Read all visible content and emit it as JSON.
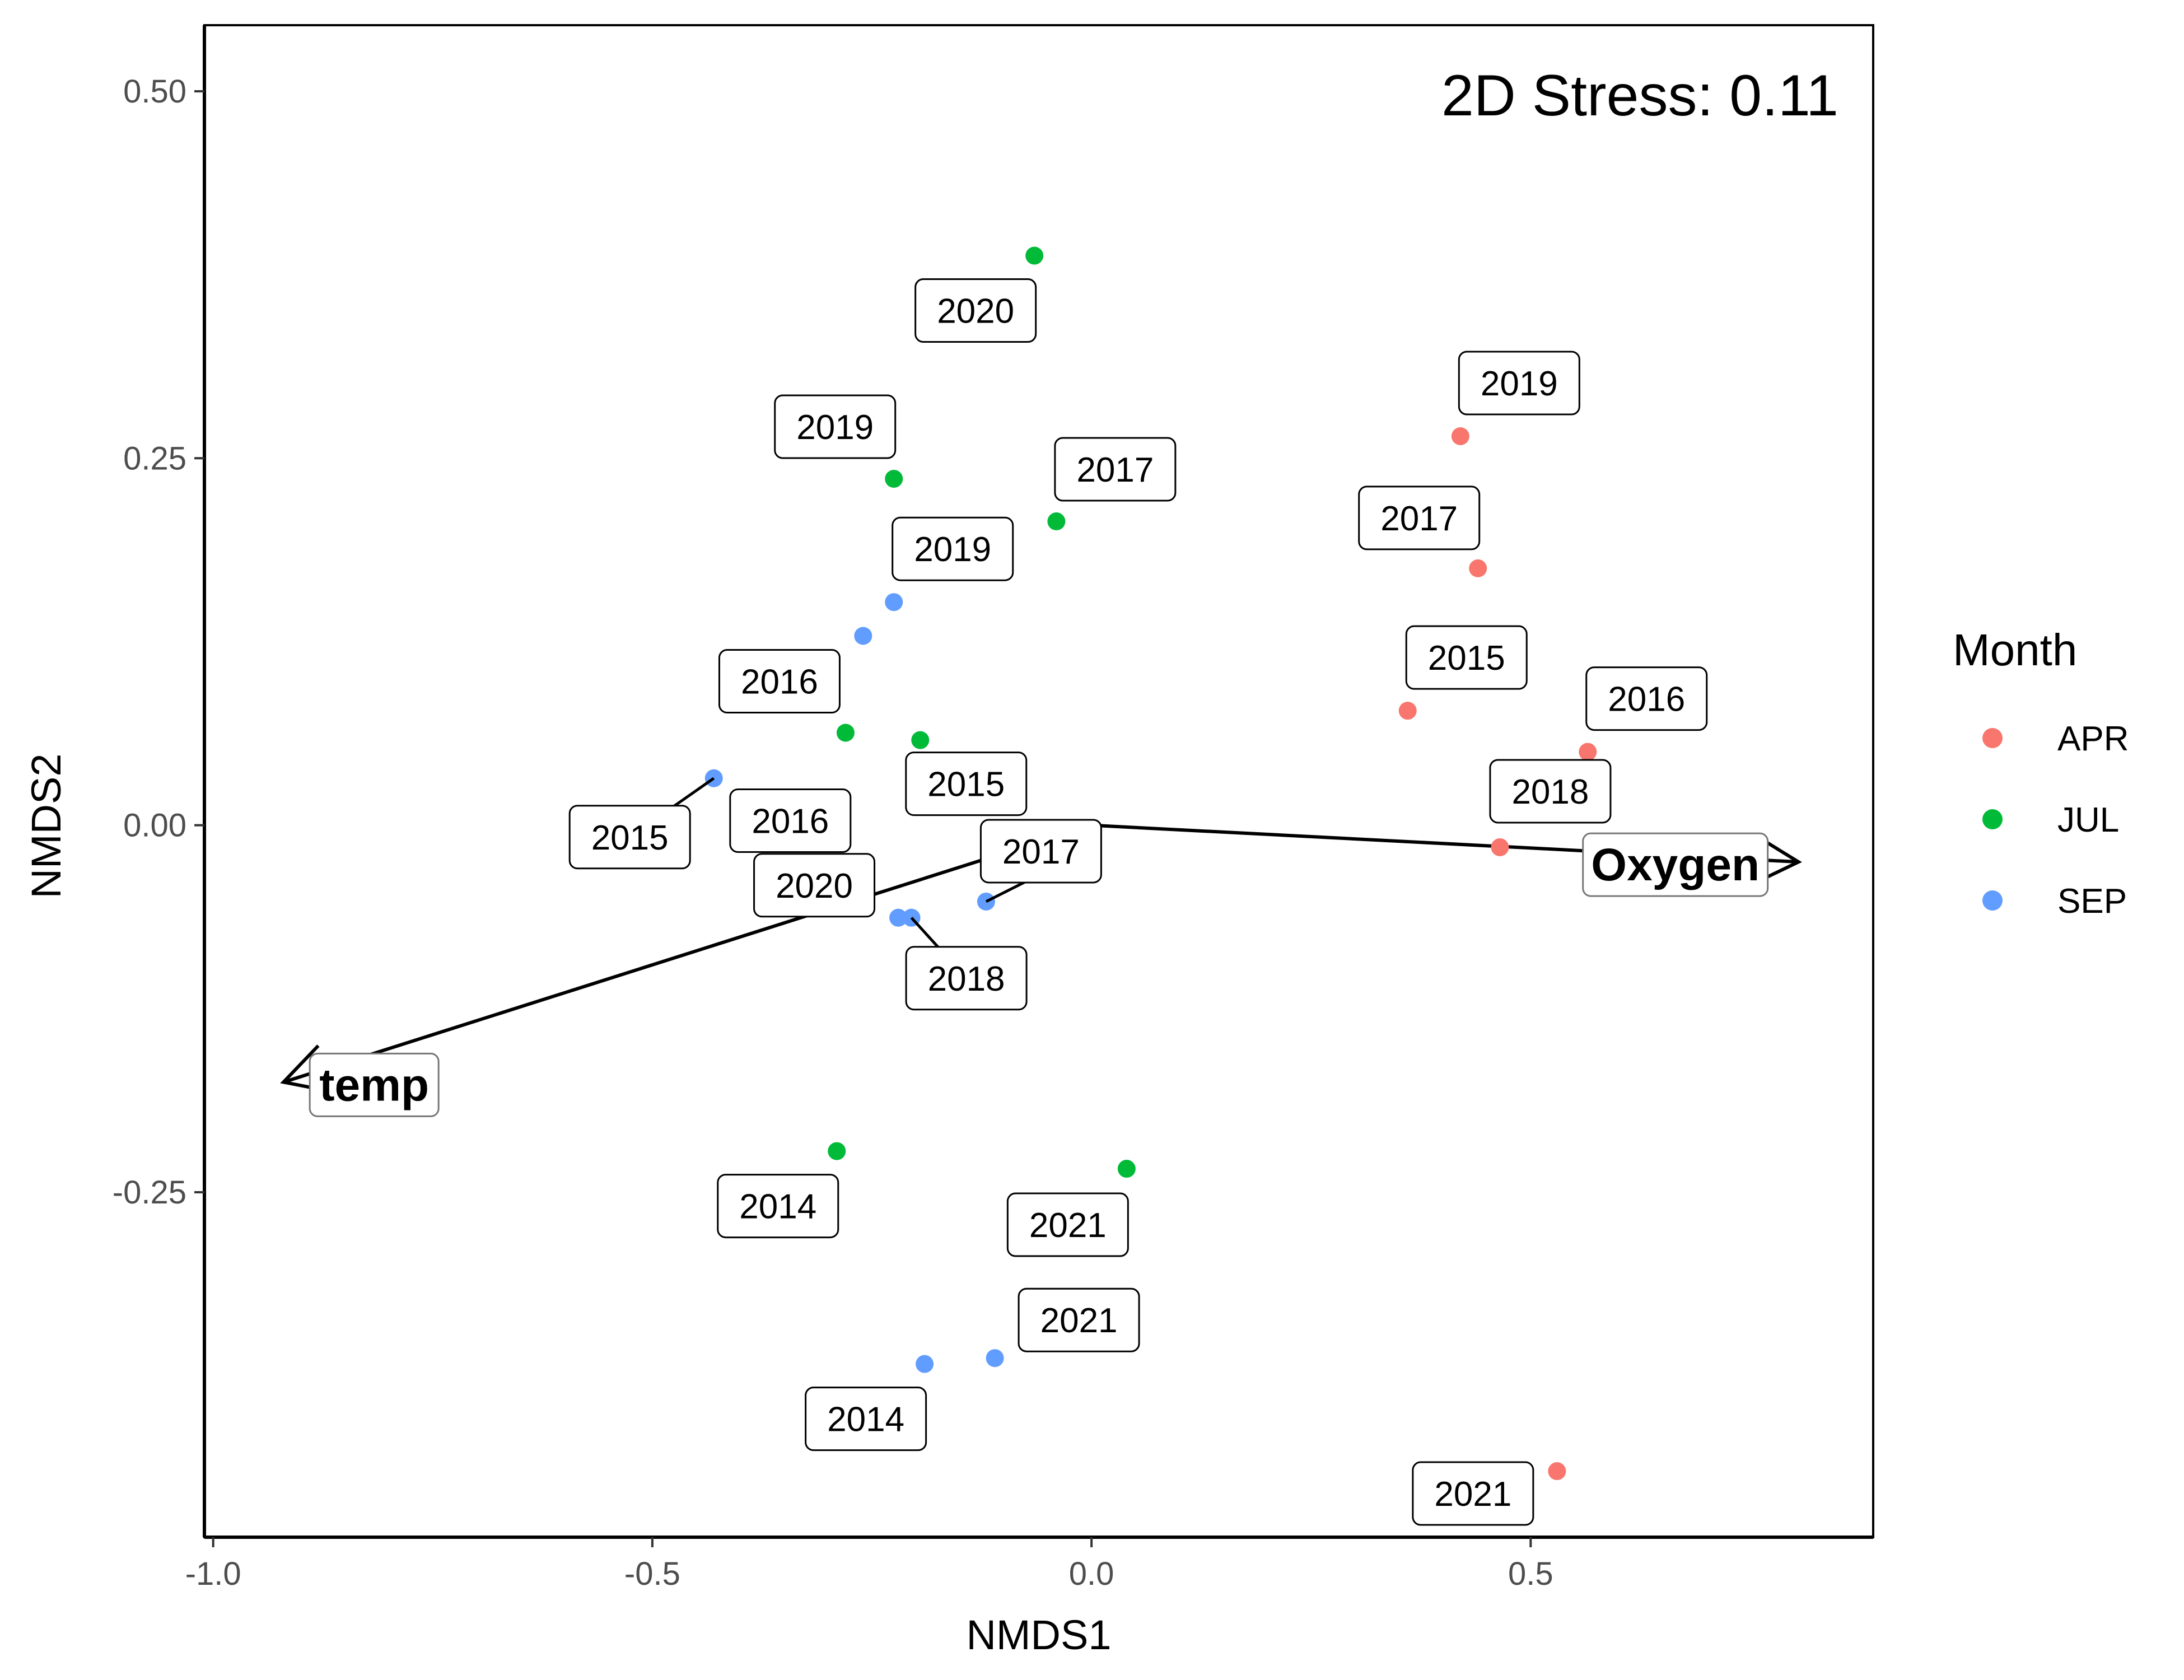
{
  "chart_data": {
    "type": "scatter",
    "xlabel": "NMDS1",
    "ylabel": "NMDS2",
    "xlim": [
      -1.01,
      0.89
    ],
    "ylim": [
      -0.485,
      0.545
    ],
    "x_ticks": [
      -1.0,
      -0.5,
      0.0,
      0.5
    ],
    "x_tick_labels": [
      "-1.0",
      "-0.5",
      "0.0",
      "0.5"
    ],
    "y_ticks": [
      0.5,
      0.25,
      0.0,
      -0.25
    ],
    "y_tick_labels": [
      "0.50",
      "0.25",
      "0.00",
      "-0.25"
    ],
    "grid": false,
    "annotation": "2D Stress: 0.11",
    "legend": {
      "title": "Month",
      "position": "right",
      "entries": [
        {
          "label": "APR",
          "color": "#F8766D"
        },
        {
          "label": "JUL",
          "color": "#00BA38"
        },
        {
          "label": "SEP",
          "color": "#619CFF"
        }
      ]
    },
    "series": [
      {
        "name": "APR",
        "color": "#F8766D",
        "points": [
          {
            "x": 0.42,
            "y": 0.265,
            "label": "2019"
          },
          {
            "x": 0.44,
            "y": 0.175,
            "label": "2017"
          },
          {
            "x": 0.36,
            "y": 0.078,
            "label": "2015"
          },
          {
            "x": 0.565,
            "y": 0.05,
            "label": "2016"
          },
          {
            "x": 0.465,
            "y": -0.015,
            "label": "2018"
          },
          {
            "x": 0.53,
            "y": -0.44,
            "label": "2021"
          }
        ]
      },
      {
        "name": "JUL",
        "color": "#00BA38",
        "points": [
          {
            "x": -0.065,
            "y": 0.388,
            "label": "2020"
          },
          {
            "x": -0.225,
            "y": 0.236,
            "label": "2019"
          },
          {
            "x": -0.04,
            "y": 0.207,
            "label": "2017"
          },
          {
            "x": -0.28,
            "y": 0.063,
            "label": "2016"
          },
          {
            "x": -0.195,
            "y": 0.058,
            "label": "2015"
          },
          {
            "x": -0.29,
            "y": -0.222,
            "label": "2014"
          },
          {
            "x": 0.04,
            "y": -0.234,
            "label": "2021"
          }
        ]
      },
      {
        "name": "SEP",
        "color": "#619CFF",
        "points": [
          {
            "x": -0.225,
            "y": 0.152,
            "label": "2019"
          },
          {
            "x": -0.26,
            "y": 0.129,
            "label": "2016"
          },
          {
            "x": -0.43,
            "y": 0.032,
            "label": "2015"
          },
          {
            "x": -0.12,
            "y": -0.052,
            "label": "2017"
          },
          {
            "x": -0.22,
            "y": -0.063,
            "label": "2020"
          },
          {
            "x": -0.205,
            "y": -0.063,
            "label": "2018"
          },
          {
            "x": -0.19,
            "y": -0.367,
            "label": "2014"
          },
          {
            "x": -0.11,
            "y": -0.363,
            "label": "2021"
          }
        ]
      }
    ],
    "vectors": [
      {
        "label": "temp",
        "x": -0.92,
        "y": -0.175
      },
      {
        "label": "Oxygen",
        "x": 0.805,
        "y": -0.025
      }
    ]
  }
}
